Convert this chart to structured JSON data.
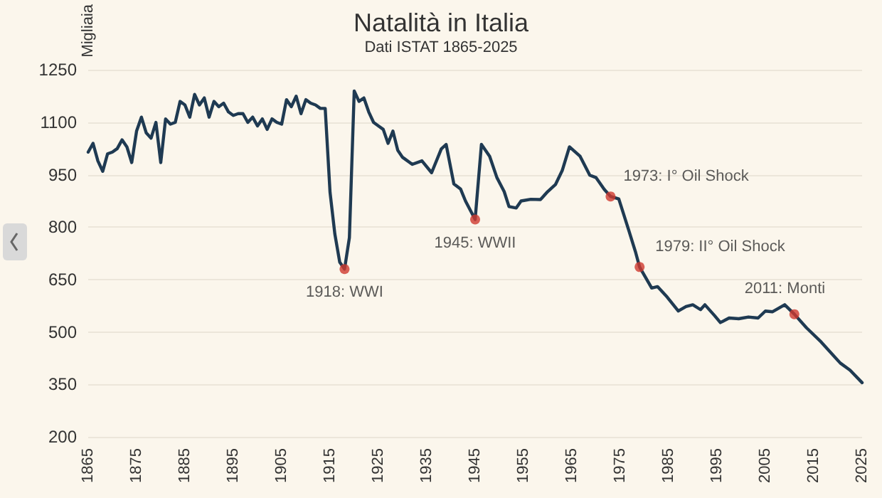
{
  "chart_data": {
    "type": "line",
    "title": "Natalità in Italia",
    "subtitle": "Dati ISTAT 1865-2025",
    "ylabel": "Migliaia",
    "xlim": [
      1865,
      2025
    ],
    "xticks": [
      1865,
      1875,
      1885,
      1895,
      1905,
      1915,
      1925,
      1935,
      1945,
      1955,
      1965,
      1975,
      1985,
      1995,
      2005,
      2015,
      2025
    ],
    "ylim": [
      200,
      1250
    ],
    "yticks": [
      200,
      350,
      500,
      650,
      800,
      950,
      1100,
      1250
    ],
    "grid": "y",
    "series": [
      {
        "color": "#1f3a52",
        "marker": "none",
        "line_style": "solid",
        "x": [
          1865,
          1866,
          1867,
          1868,
          1869,
          1870,
          1871,
          1872,
          1873,
          1874,
          1875,
          1876,
          1877,
          1878,
          1879,
          1880,
          1881,
          1882,
          1883,
          1884,
          1885,
          1886,
          1887,
          1888,
          1889,
          1890,
          1891,
          1892,
          1893,
          1894,
          1895,
          1896,
          1897,
          1898,
          1899,
          1900,
          1901,
          1902,
          1903,
          1904,
          1905,
          1906,
          1907,
          1908,
          1909,
          1910,
          1911,
          1912,
          1913,
          1914,
          1915,
          1916,
          1917,
          1918,
          1919,
          1920,
          1921,
          1922,
          1923,
          1924,
          1925,
          1926,
          1927,
          1928,
          1929,
          1930,
          1932,
          1934,
          1936,
          1938,
          1939,
          1940.6,
          1942,
          1943,
          1945,
          1946.3,
          1948,
          1949.5,
          1951,
          1952,
          1953.5,
          1954.5,
          1956.5,
          1958.5,
          1960,
          1961.6,
          1963,
          1964.5,
          1966.7,
          1968.7,
          1970,
          1971.7,
          1973,
          1974.7,
          1976.7,
          1978.2,
          1979,
          1981.5,
          1982.7,
          1984.7,
          1987,
          1988.6,
          1990,
          1991.6,
          1992.5,
          1994.5,
          1995.7,
          1997.5,
          1999.5,
          2001.5,
          2003.5,
          2005,
          2006.5,
          2009,
          2011,
          2013.5,
          2016.5,
          2020.5,
          2022.5,
          2025
        ],
        "values": [
          1015,
          1040,
          990,
          960,
          1010,
          1015,
          1025,
          1050,
          1030,
          985,
          1075,
          1115,
          1070,
          1055,
          1100,
          985,
          1110,
          1095,
          1100,
          1160,
          1150,
          1115,
          1180,
          1150,
          1170,
          1115,
          1160,
          1145,
          1155,
          1130,
          1120,
          1125,
          1125,
          1100,
          1115,
          1090,
          1110,
          1080,
          1110,
          1100,
          1095,
          1165,
          1145,
          1175,
          1125,
          1165,
          1155,
          1150,
          1140,
          1140,
          900,
          780,
          700,
          680,
          770,
          1190,
          1160,
          1170,
          1130,
          1100,
          1090,
          1080,
          1040,
          1075,
          1020,
          1000,
          980,
          990,
          956,
          1024,
          1037,
          924,
          909,
          875,
          822,
          1037,
          1003,
          942,
          902,
          859,
          855,
          875,
          880,
          879,
          902,
          922,
          962,
          1030,
          1003,
          949,
          942,
          908,
          888,
          881,
          794,
          727,
          686,
          626,
          630,
          600,
          560,
          573,
          578,
          564,
          578,
          547,
          527,
          540,
          538,
          543,
          540,
          560,
          558,
          578,
          551,
          512,
          472,
          411,
          391,
          355
        ]
      },
      {
        "type": "scatter",
        "color": "#d03a30",
        "marker": "circle",
        "x": [
          1918,
          1945,
          1973,
          1979,
          2011
        ],
        "values": [
          680,
          822,
          888,
          686,
          551
        ]
      }
    ],
    "annotations": [
      {
        "text": "1918: WWI",
        "x": 1918,
        "y": 680
      },
      {
        "text": "1945: WWII",
        "x": 1945,
        "y": 822
      },
      {
        "text": "1973: I° Oil Shock",
        "x": 1973,
        "y": 888
      },
      {
        "text": "1979: II° Oil Shock",
        "x": 1979,
        "y": 686
      },
      {
        "text": "2011: Monti",
        "x": 2011,
        "y": 551
      }
    ]
  }
}
